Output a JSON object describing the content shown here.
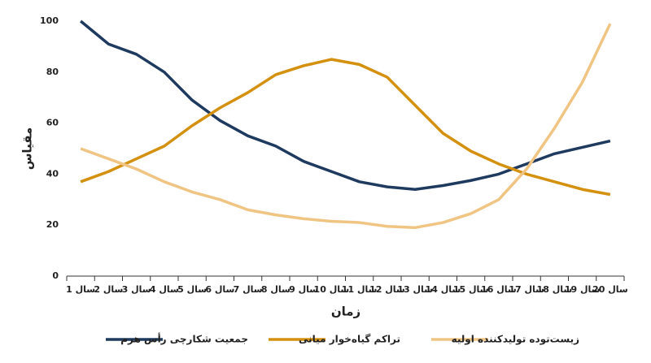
{
  "chart_data": {
    "type": "line",
    "x_label": "زمان",
    "y_label": "مقیاس",
    "categories": [
      "سال 1",
      "سال 2",
      "سال 3",
      "سال 4",
      "سال 5",
      "سال 6",
      "سال 7",
      "سال 8",
      "سال 9",
      "سال 10",
      "سال 11",
      "سال 12",
      "سال 13",
      "سال 14",
      "سال 15",
      "سال 16",
      "سال 17",
      "سال 18",
      "سال 19",
      "سال 20"
    ],
    "ylim": [
      0,
      100
    ],
    "yticks": [
      0,
      20,
      40,
      60,
      80,
      100
    ],
    "series": [
      {
        "name": "جمعیت شکارچی رأس هرم",
        "color": "#1f3a5f",
        "values": [
          100,
          91,
          87,
          80,
          69,
          61,
          55,
          51,
          45,
          41,
          37,
          35,
          34,
          35.5,
          37.5,
          40,
          44,
          48,
          50.5,
          53
        ]
      },
      {
        "name": "تراکم گیاه‌خوار میانی",
        "color": "#d4900f",
        "values": [
          37,
          41,
          46,
          51,
          59,
          66,
          72,
          79,
          82.5,
          85,
          83,
          78,
          67,
          56,
          49,
          44,
          40,
          37,
          34,
          32
        ]
      },
      {
        "name": "زیست‌توده تولیدکننده اولیه",
        "color": "#f0c584",
        "values": [
          50,
          46,
          42,
          37,
          33,
          30,
          26,
          24,
          22.5,
          21.5,
          21,
          19.5,
          19,
          21,
          24.5,
          30,
          42,
          58,
          76,
          99
        ]
      }
    ]
  }
}
